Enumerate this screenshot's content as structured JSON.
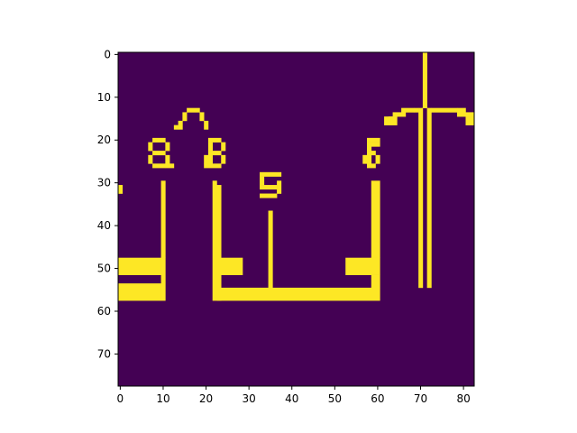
{
  "chart_data": {
    "type": "heatmap",
    "title": "",
    "xlabel": "",
    "ylabel": "",
    "x_range": [
      0,
      83
    ],
    "y_range": [
      78,
      0
    ],
    "x_ticks": [
      0,
      10,
      20,
      30,
      40,
      50,
      60,
      70,
      80
    ],
    "y_ticks": [
      0,
      10,
      20,
      30,
      40,
      50,
      60,
      70
    ],
    "colors": {
      "background": "#440154",
      "foreground": "#fde725"
    },
    "grid": false,
    "foreground_cells": [
      [
        71,
        0,
        72,
        13
      ],
      [
        70,
        13,
        71,
        55
      ],
      [
        72,
        13,
        73,
        55
      ],
      [
        69,
        13,
        70,
        14
      ],
      [
        73,
        13,
        79,
        14
      ],
      [
        79,
        13,
        81,
        14
      ],
      [
        66,
        13,
        69,
        14
      ],
      [
        64,
        14,
        67,
        15
      ],
      [
        79,
        14,
        83,
        15
      ],
      [
        62,
        15,
        65,
        17
      ],
      [
        81,
        15,
        83,
        17
      ],
      [
        63,
        15,
        64,
        16
      ],
      [
        16,
        13,
        19,
        14
      ],
      [
        15,
        14,
        16,
        16
      ],
      [
        19,
        14,
        20,
        16
      ],
      [
        14,
        16,
        15,
        18
      ],
      [
        20,
        16,
        21,
        18
      ],
      [
        13,
        17,
        14,
        18
      ],
      [
        8,
        20,
        11,
        21
      ],
      [
        7,
        21,
        8,
        23
      ],
      [
        11,
        21,
        12,
        23
      ],
      [
        8,
        23,
        11,
        24
      ],
      [
        7,
        24,
        8,
        26
      ],
      [
        11,
        24,
        12,
        26
      ],
      [
        8,
        26,
        11,
        27
      ],
      [
        11,
        26,
        13,
        27
      ],
      [
        21,
        20,
        24,
        21
      ],
      [
        21,
        21,
        22,
        23
      ],
      [
        24,
        21,
        25,
        23
      ],
      [
        21,
        23,
        24,
        24
      ],
      [
        20,
        24,
        22,
        26
      ],
      [
        24,
        24,
        25,
        26
      ],
      [
        20,
        26,
        24,
        27
      ],
      [
        58,
        20,
        61,
        21
      ],
      [
        58,
        21,
        59,
        23
      ],
      [
        58,
        23,
        60,
        24
      ],
      [
        59,
        21,
        61,
        22
      ],
      [
        57,
        24,
        59,
        26
      ],
      [
        60,
        24,
        61,
        26
      ],
      [
        58,
        26,
        60,
        27
      ],
      [
        33,
        28,
        38,
        29
      ],
      [
        33,
        29,
        34,
        31
      ],
      [
        33,
        31,
        37,
        32
      ],
      [
        37,
        30,
        38,
        33
      ],
      [
        33,
        33,
        37,
        34
      ],
      [
        0,
        31,
        1,
        33
      ],
      [
        10,
        30,
        11,
        48
      ],
      [
        10,
        48,
        11,
        58
      ],
      [
        0,
        48,
        10,
        52
      ],
      [
        0,
        54,
        10,
        58
      ],
      [
        22,
        30,
        23,
        58
      ],
      [
        23,
        31,
        24,
        58
      ],
      [
        24,
        48,
        29,
        52
      ],
      [
        23,
        55,
        61,
        58
      ],
      [
        35,
        37,
        36,
        55
      ],
      [
        59,
        30,
        61,
        48
      ],
      [
        53,
        48,
        61,
        52
      ],
      [
        59,
        52,
        61,
        55
      ]
    ]
  }
}
